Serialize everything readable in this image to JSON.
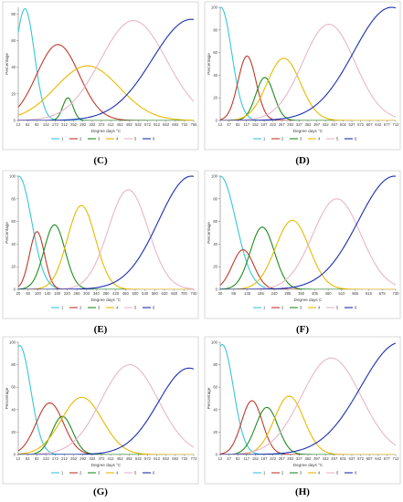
{
  "series_colors": {
    "1": "#38c6d8",
    "2": "#c0392b",
    "3": "#1e8c1e",
    "4": "#e8b900",
    "5": "#e7b6c9",
    "6": "#1a2fae"
  },
  "chart_data": [
    {
      "type": "line",
      "panel_label": "(C)",
      "xlabel": "Degree days °C",
      "ylabel": "Percentage",
      "ylim": [
        0,
        85
      ],
      "yticks": [
        0,
        20,
        40,
        60,
        80
      ],
      "xlim": [
        12,
        755
      ],
      "x_tick_labels": [
        "12",
        "52",
        "92",
        "132",
        "172",
        "212",
        "252",
        "292",
        "332",
        "372",
        "412",
        "452",
        "492",
        "532",
        "572",
        "612",
        "652",
        "692",
        "732",
        "755"
      ],
      "grid": false,
      "legend_position": "bottom",
      "series": [
        {
          "name": "1",
          "peak_x": 40,
          "peak_y": 84,
          "spread": 40
        },
        {
          "name": "2",
          "peak_x": 180,
          "peak_y": 57,
          "spread": 90
        },
        {
          "name": "3",
          "peak_x": 222,
          "peak_y": 17,
          "spread": 22
        },
        {
          "name": "4",
          "peak_x": 305,
          "peak_y": 41,
          "spread": 135
        },
        {
          "name": "5",
          "peak_x": 500,
          "peak_y": 75,
          "spread": 140
        },
        {
          "name": "6",
          "peak_x": 745,
          "peak_y": 76,
          "spread": 165
        }
      ]
    },
    {
      "type": "line",
      "panel_label": "(D)",
      "xlabel": "Degree days °C",
      "ylabel": "Percentage",
      "ylim": [
        0,
        100
      ],
      "yticks": [
        0,
        20,
        40,
        60,
        80,
        100
      ],
      "xlim": [
        12,
        752
      ],
      "x_tick_labels": [
        "12",
        "47",
        "82",
        "117",
        "152",
        "187",
        "222",
        "257",
        "292",
        "327",
        "362",
        "397",
        "432",
        "467",
        "502",
        "537",
        "572",
        "607",
        "642",
        "677",
        "712"
      ],
      "grid": false,
      "legend_position": "bottom",
      "series": [
        {
          "name": "1",
          "peak_x": 15,
          "peak_y": 100,
          "spread": 45
        },
        {
          "name": "2",
          "peak_x": 125,
          "peak_y": 57,
          "spread": 38
        },
        {
          "name": "3",
          "peak_x": 200,
          "peak_y": 38,
          "spread": 38
        },
        {
          "name": "4",
          "peak_x": 280,
          "peak_y": 55,
          "spread": 70
        },
        {
          "name": "5",
          "peak_x": 470,
          "peak_y": 85,
          "spread": 110
        },
        {
          "name": "6",
          "peak_x": 735,
          "peak_y": 100,
          "spread": 160
        }
      ]
    },
    {
      "type": "line",
      "panel_label": "(E)",
      "xlabel": "Degree days °C",
      "ylabel": "Percentage",
      "ylim": [
        0,
        100
      ],
      "yticks": [
        0,
        20,
        40,
        60,
        80,
        100
      ],
      "xlim": [
        20,
        770
      ],
      "x_tick_labels": [
        "20",
        "60",
        "100",
        "140",
        "180",
        "220",
        "260",
        "300",
        "340",
        "380",
        "420",
        "460",
        "500",
        "540",
        "580",
        "620",
        "660",
        "700",
        "740"
      ],
      "grid": false,
      "legend_position": "bottom",
      "series": [
        {
          "name": "1",
          "peak_x": 22,
          "peak_y": 100,
          "spread": 55
        },
        {
          "name": "2",
          "peak_x": 100,
          "peak_y": 51,
          "spread": 32
        },
        {
          "name": "3",
          "peak_x": 175,
          "peak_y": 57,
          "spread": 45
        },
        {
          "name": "4",
          "peak_x": 290,
          "peak_y": 74,
          "spread": 60
        },
        {
          "name": "5",
          "peak_x": 490,
          "peak_y": 88,
          "spread": 85
        },
        {
          "name": "6",
          "peak_x": 760,
          "peak_y": 100,
          "spread": 140
        }
      ]
    },
    {
      "type": "line",
      "panel_label": "(F)",
      "xlabel": "Degree days C",
      "ylabel": "Percentage",
      "ylim": [
        0,
        100
      ],
      "yticks": [
        0,
        20,
        40,
        60,
        80,
        100
      ],
      "xlim": [
        30,
        760
      ],
      "x_tick_labels": [
        "30",
        "85",
        "135",
        "185",
        "240",
        "295",
        "350",
        "405",
        "460",
        "510",
        "565",
        "615",
        "675",
        "730"
      ],
      "grid": false,
      "legend_position": "bottom",
      "series": [
        {
          "name": "1",
          "peak_x": 30,
          "peak_y": 100,
          "spread": 65
        },
        {
          "name": "2",
          "peak_x": 125,
          "peak_y": 35,
          "spread": 45
        },
        {
          "name": "3",
          "peak_x": 205,
          "peak_y": 55,
          "spread": 50
        },
        {
          "name": "4",
          "peak_x": 330,
          "peak_y": 61,
          "spread": 70
        },
        {
          "name": "5",
          "peak_x": 515,
          "peak_y": 80,
          "spread": 100
        },
        {
          "name": "6",
          "peak_x": 755,
          "peak_y": 100,
          "spread": 150
        }
      ]
    },
    {
      "type": "line",
      "panel_label": "(G)",
      "xlabel": "Degree days °C",
      "ylabel": "Percentage",
      "ylim": [
        0,
        100
      ],
      "yticks": [
        0,
        20,
        40,
        60,
        80,
        100
      ],
      "xlim": [
        12,
        780
      ],
      "x_tick_labels": [
        "12",
        "52",
        "92",
        "132",
        "172",
        "212",
        "252",
        "292",
        "332",
        "372",
        "412",
        "452",
        "492",
        "532",
        "572",
        "612",
        "652",
        "692",
        "732",
        "773"
      ],
      "grid": false,
      "legend_position": "bottom",
      "series": [
        {
          "name": "1",
          "peak_x": 18,
          "peak_y": 97,
          "spread": 48
        },
        {
          "name": "2",
          "peak_x": 150,
          "peak_y": 46,
          "spread": 60
        },
        {
          "name": "3",
          "peak_x": 205,
          "peak_y": 34,
          "spread": 45
        },
        {
          "name": "4",
          "peak_x": 290,
          "peak_y": 51,
          "spread": 90
        },
        {
          "name": "5",
          "peak_x": 500,
          "peak_y": 80,
          "spread": 125
        },
        {
          "name": "6",
          "peak_x": 760,
          "peak_y": 77,
          "spread": 135
        }
      ]
    },
    {
      "type": "line",
      "panel_label": "(H)",
      "xlabel": "Degree days °C",
      "ylabel": "Percentage",
      "ylim": [
        0,
        100
      ],
      "yticks": [
        0,
        20,
        40,
        60,
        80,
        100
      ],
      "xlim": [
        12,
        720
      ],
      "x_tick_labels": [
        "12",
        "47",
        "82",
        "117",
        "152",
        "187",
        "222",
        "257",
        "292",
        "327",
        "362",
        "397",
        "432",
        "467",
        "502",
        "537",
        "572",
        "607",
        "642",
        "677",
        "712"
      ],
      "grid": false,
      "legend_position": "bottom",
      "series": [
        {
          "name": "1",
          "peak_x": 20,
          "peak_y": 98,
          "spread": 45
        },
        {
          "name": "2",
          "peak_x": 140,
          "peak_y": 48,
          "spread": 42
        },
        {
          "name": "3",
          "peak_x": 200,
          "peak_y": 42,
          "spread": 45
        },
        {
          "name": "4",
          "peak_x": 290,
          "peak_y": 52,
          "spread": 60
        },
        {
          "name": "5",
          "peak_x": 460,
          "peak_y": 86,
          "spread": 120
        },
        {
          "name": "6",
          "peak_x": 740,
          "peak_y": 100,
          "spread": 160
        }
      ]
    }
  ]
}
